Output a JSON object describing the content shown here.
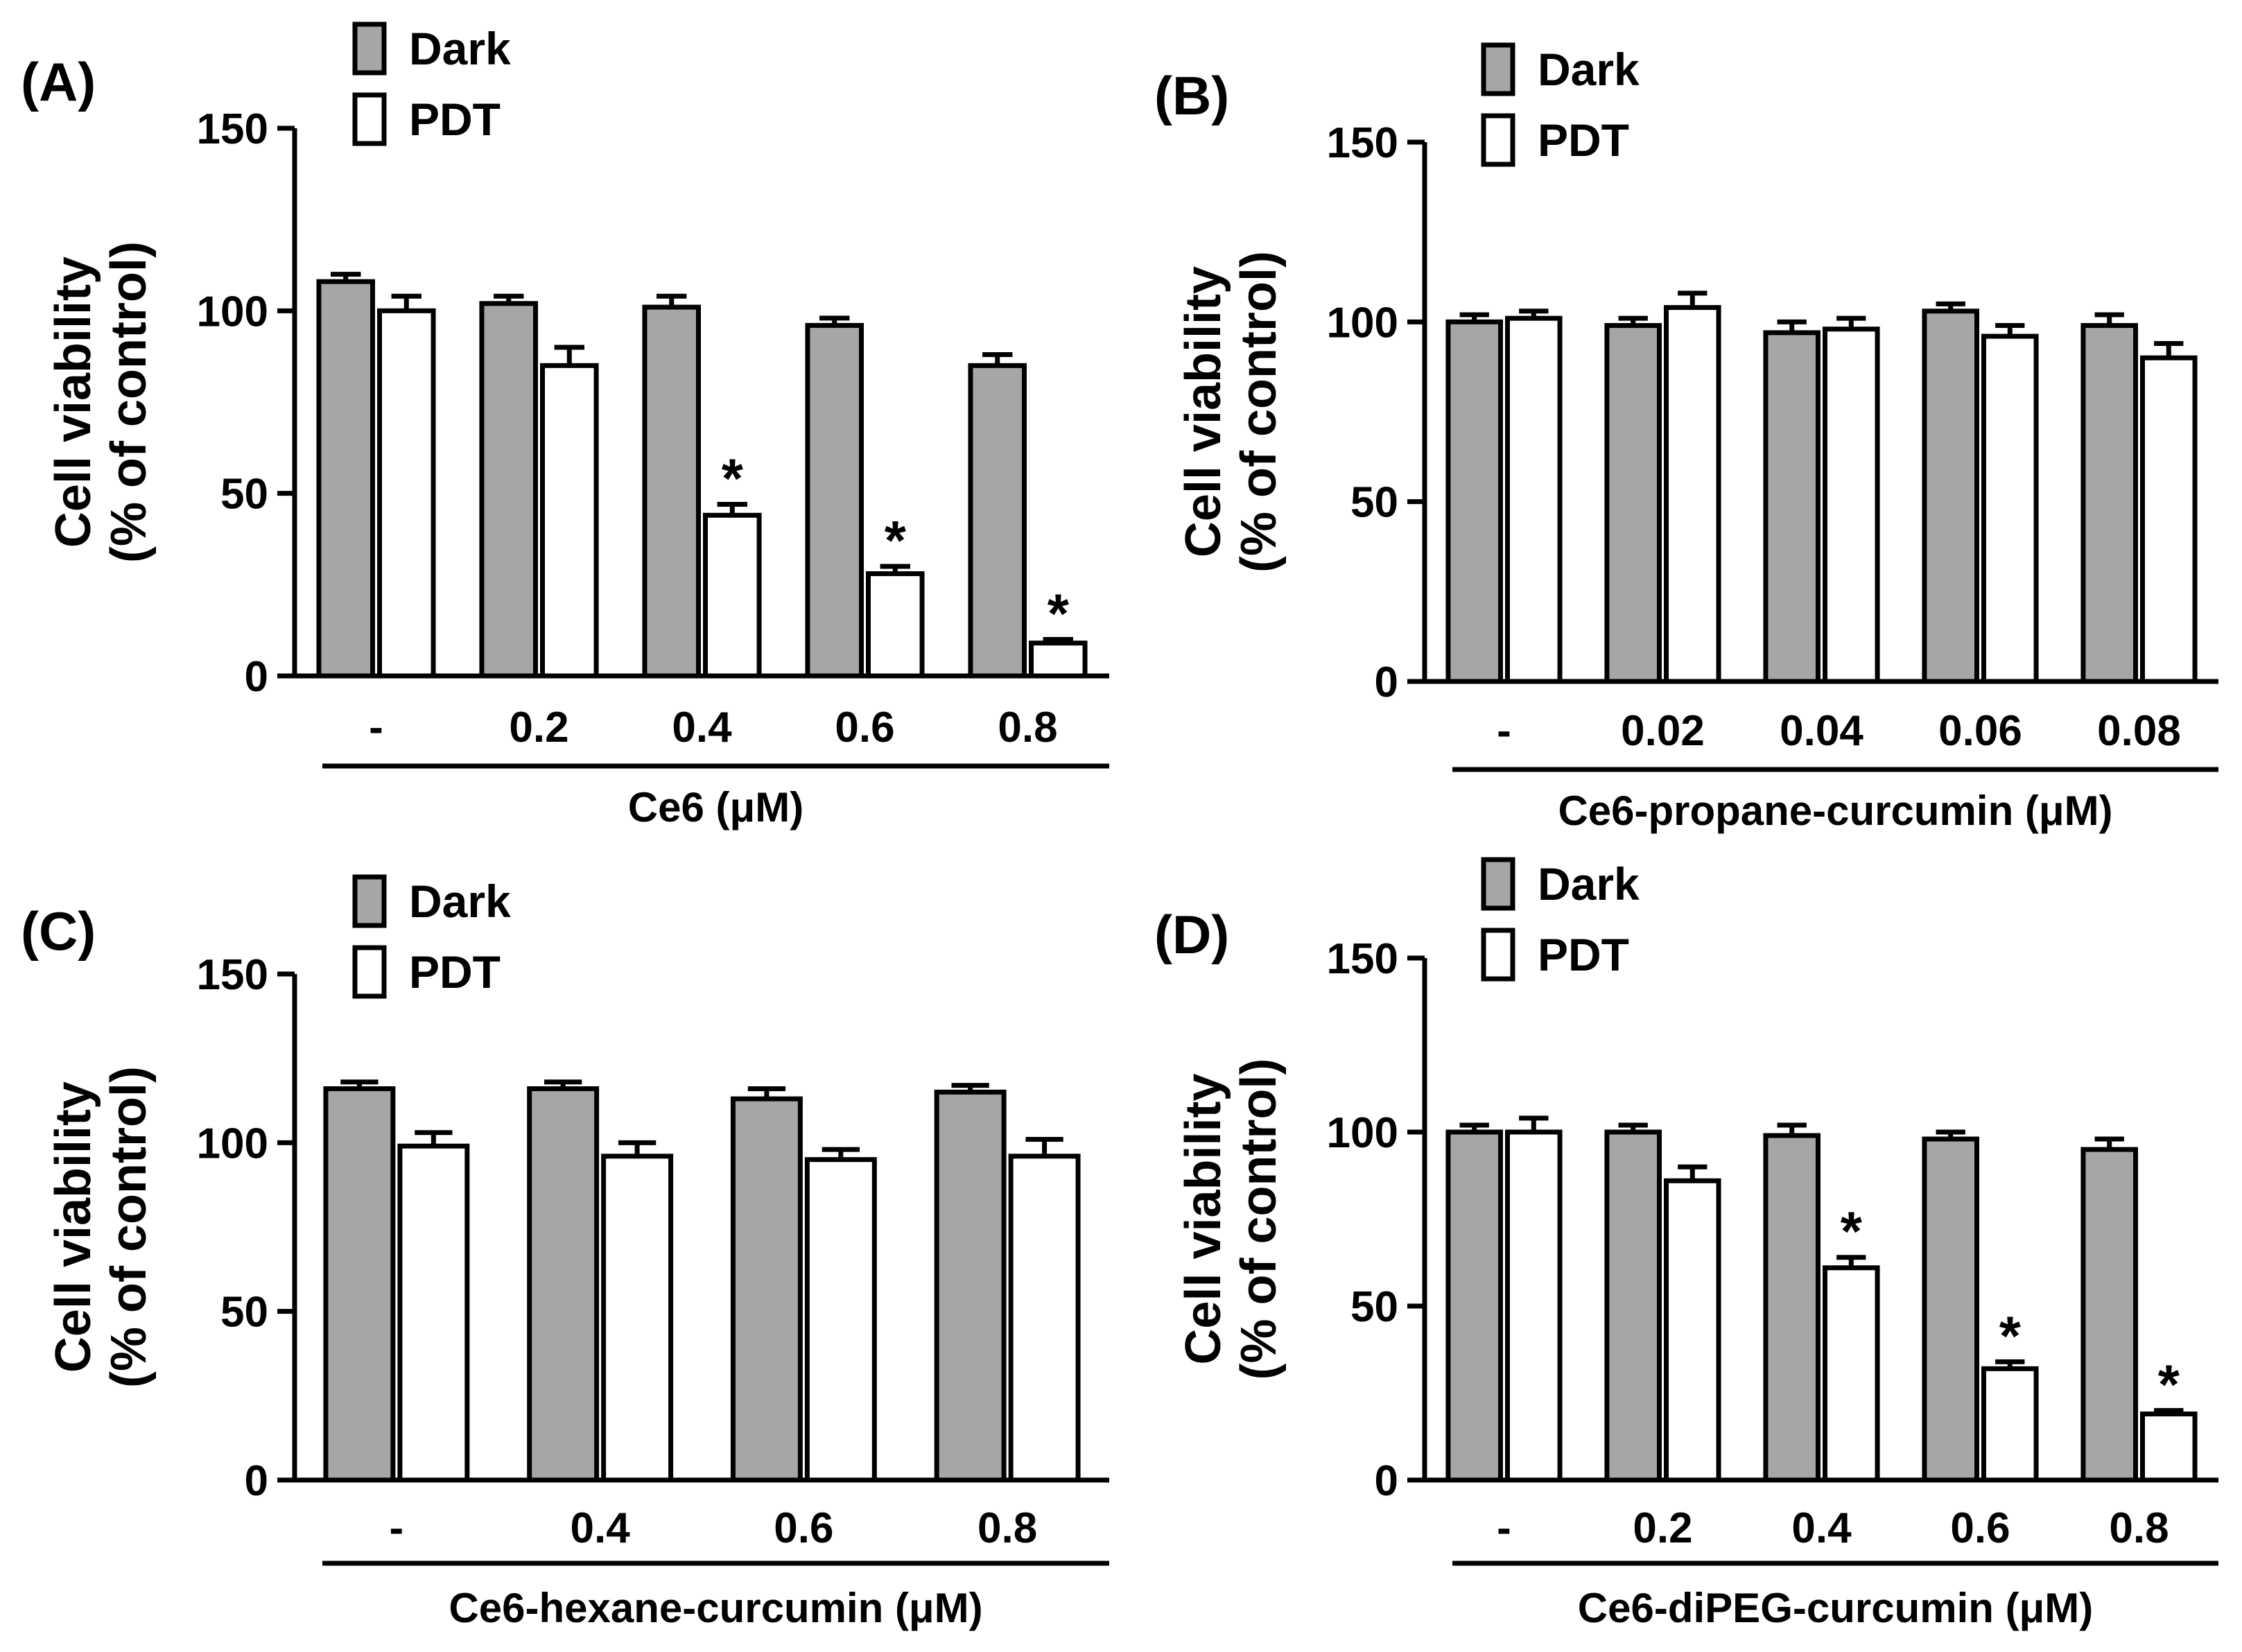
{
  "colors": {
    "dark_bar": "#a6a6a6",
    "pdt_bar": "#ffffff",
    "stroke": "#000000"
  },
  "chart_data": [
    {
      "type": "bar",
      "panel": "(A)",
      "categories": [
        "-",
        "0.2",
        "0.4",
        "0.6",
        "0.8"
      ],
      "series": [
        {
          "name": "Dark",
          "values": [
            108,
            102,
            101,
            96,
            85
          ],
          "errors": [
            2,
            2,
            3,
            2,
            3
          ]
        },
        {
          "name": "PDT",
          "values": [
            100,
            85,
            44,
            28,
            9
          ],
          "errors": [
            4,
            5,
            3,
            2,
            1
          ]
        }
      ],
      "significance": [
        {
          "series": 1,
          "category": 2,
          "mark": "*"
        },
        {
          "series": 1,
          "category": 3,
          "mark": "*"
        },
        {
          "series": 1,
          "category": 4,
          "mark": "*"
        }
      ],
      "ylabel": [
        "Cell viability",
        "(% of control)"
      ],
      "xlabel": "Ce6 (μM)",
      "ylim": [
        0,
        150
      ],
      "yticks": [
        0,
        50,
        100,
        150
      ],
      "legend": "top-left"
    },
    {
      "type": "bar",
      "panel": "(B)",
      "categories": [
        "-",
        "0.02",
        "0.04",
        "0.06",
        "0.08"
      ],
      "series": [
        {
          "name": "Dark",
          "values": [
            100,
            99,
            97,
            103,
            99
          ],
          "errors": [
            2,
            2,
            3,
            2,
            3
          ]
        },
        {
          "name": "PDT",
          "values": [
            101,
            104,
            98,
            96,
            90
          ],
          "errors": [
            2,
            4,
            3,
            3,
            4
          ]
        }
      ],
      "significance": [],
      "ylabel": [
        "Cell viability",
        "(% of control)"
      ],
      "xlabel": "Ce6-propane-curcumin (μM)",
      "ylim": [
        0,
        150
      ],
      "yticks": [
        0,
        50,
        100,
        150
      ],
      "legend": "top-left"
    },
    {
      "type": "bar",
      "panel": "(C)",
      "categories": [
        "-",
        "0.4",
        "0.6",
        "0.8"
      ],
      "series": [
        {
          "name": "Dark",
          "values": [
            116,
            116,
            113,
            115
          ],
          "errors": [
            2,
            2,
            3,
            2
          ]
        },
        {
          "name": "PDT",
          "values": [
            99,
            96,
            95,
            96
          ],
          "errors": [
            4,
            4,
            3,
            5
          ]
        }
      ],
      "significance": [],
      "ylabel": [
        "Cell viability",
        "(% of control)"
      ],
      "xlabel": "Ce6-hexane-curcumin (μM)",
      "ylim": [
        0,
        150
      ],
      "yticks": [
        0,
        50,
        100,
        150
      ],
      "legend": "top-left"
    },
    {
      "type": "bar",
      "panel": "(D)",
      "categories": [
        "-",
        "0.2",
        "0.4",
        "0.6",
        "0.8"
      ],
      "series": [
        {
          "name": "Dark",
          "values": [
            100,
            100,
            99,
            98,
            95
          ],
          "errors": [
            2,
            2,
            3,
            2,
            3
          ]
        },
        {
          "name": "PDT",
          "values": [
            100,
            86,
            61,
            32,
            19
          ],
          "errors": [
            4,
            4,
            3,
            2,
            1
          ]
        }
      ],
      "significance": [
        {
          "series": 1,
          "category": 2,
          "mark": "*"
        },
        {
          "series": 1,
          "category": 3,
          "mark": "*"
        },
        {
          "series": 1,
          "category": 4,
          "mark": "*"
        }
      ],
      "ylabel": [
        "Cell viability",
        "(% of control)"
      ],
      "xlabel": "Ce6-diPEG-curcumin (μM)",
      "ylim": [
        0,
        150
      ],
      "yticks": [
        0,
        50,
        100,
        150
      ],
      "legend": "top-left"
    }
  ]
}
